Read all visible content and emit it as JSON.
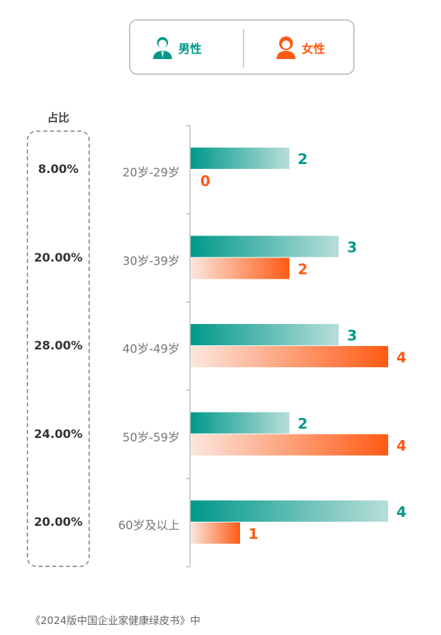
{
  "chart_data": {
    "type": "bar",
    "orientation": "horizontal",
    "categories": [
      "20岁-29岁",
      "30岁-39岁",
      "40岁-49岁",
      "50岁-59岁",
      "60岁及以上"
    ],
    "series": [
      {
        "name": "男性",
        "color": "#00998a",
        "values": [
          2,
          3,
          3,
          2,
          4
        ]
      },
      {
        "name": "女性",
        "color": "#ff5a14",
        "values": [
          0,
          2,
          4,
          4,
          1
        ]
      }
    ],
    "share_title": "占比",
    "share": [
      "8.00%",
      "20.00%",
      "28.00%",
      "24.00%",
      "20.00%"
    ],
    "xlim": [
      0,
      4
    ],
    "legend_position": "top"
  },
  "source": "《2024版中国企业家健康绿皮书》中"
}
